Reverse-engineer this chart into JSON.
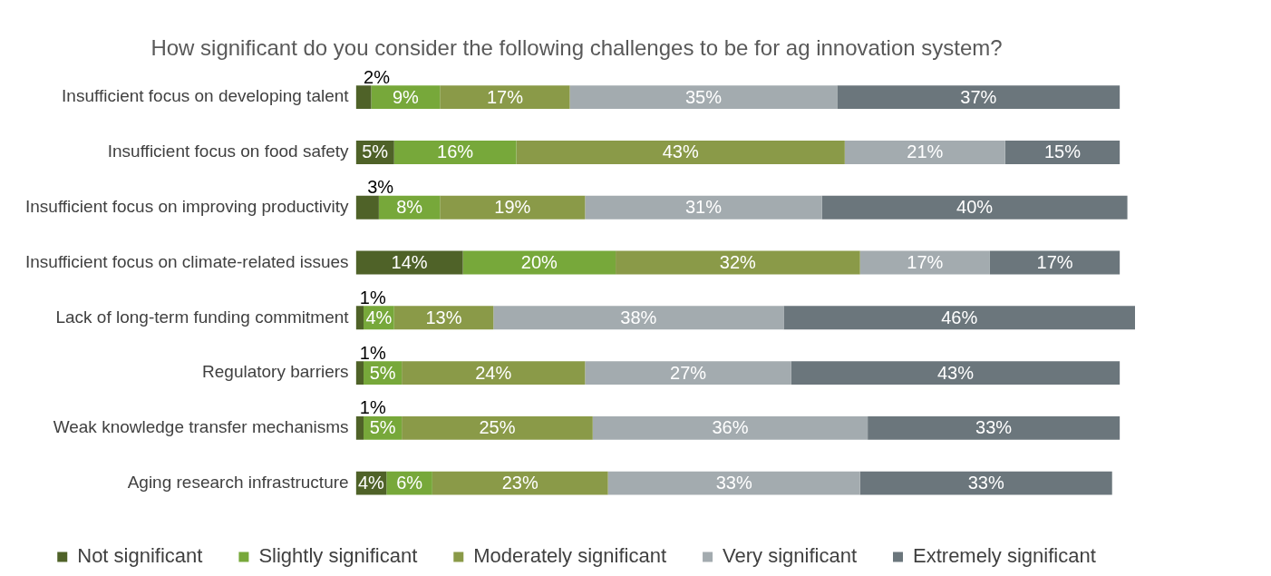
{
  "chart_data": {
    "type": "bar",
    "orientation": "horizontal",
    "stacked": true,
    "title": "How significant do you consider the following challenges to be for ag innovation system?",
    "categories": [
      "Insufficient focus on developing talent",
      "Insufficient focus on food safety",
      "Insufficient focus on improving productivity",
      "Insufficient focus on climate-related issues",
      "Lack of long-term funding commitment",
      "Regulatory barriers",
      "Weak knowledge transfer mechanisms",
      "Aging research infrastructure"
    ],
    "series": [
      {
        "name": "Not significant",
        "color": "#4f6228",
        "values": [
          2,
          5,
          3,
          14,
          1,
          1,
          1,
          4
        ],
        "value_labels": [
          "2%",
          "5%",
          "3%",
          "14%",
          "1%",
          "1%",
          "1%",
          "4%"
        ]
      },
      {
        "name": "Slightly significant",
        "color": "#77a83a",
        "values": [
          9,
          16,
          8,
          20,
          4,
          5,
          5,
          6
        ],
        "value_labels": [
          "9%",
          "16%",
          "8%",
          "20%",
          "4%",
          "5%",
          "5%",
          "6%"
        ]
      },
      {
        "name": "Moderately significant",
        "color": "#8a9a48",
        "values": [
          17,
          43,
          19,
          32,
          13,
          24,
          25,
          23
        ],
        "value_labels": [
          "17%",
          "43%",
          "19%",
          "32%",
          "13%",
          "24%",
          "25%",
          "23%"
        ]
      },
      {
        "name": "Very significant",
        "color": "#a3abaf",
        "values": [
          35,
          21,
          31,
          17,
          38,
          27,
          36,
          33
        ],
        "value_labels": [
          "35%",
          "21%",
          "31%",
          "17%",
          "38%",
          "27%",
          "36%",
          "33%"
        ]
      },
      {
        "name": "Extremely significant",
        "color": "#6b767c",
        "values": [
          37,
          15,
          40,
          17,
          46,
          43,
          33,
          33
        ],
        "value_labels": [
          "37%",
          "15%",
          "40%",
          "17%",
          "46%",
          "43%",
          "33%",
          "33%"
        ]
      }
    ],
    "tick_labels": "y",
    "legend": "bottom"
  }
}
